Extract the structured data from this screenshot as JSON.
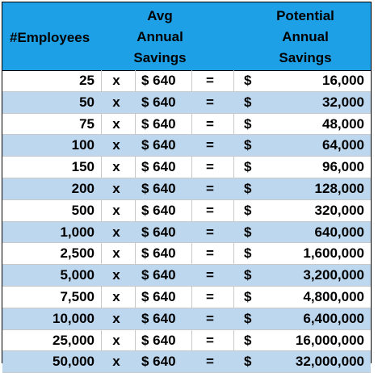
{
  "header": {
    "employees": "#Employees",
    "avg_line1": "Avg",
    "avg_line2": "Annual",
    "avg_line3": "Savings",
    "pot_line1": "Potential",
    "pot_line2": "Annual",
    "pot_line3": "Savings"
  },
  "colors": {
    "header_bg": "#1ea0e6",
    "alt_row_bg": "#bdd7ee"
  },
  "rows": [
    {
      "employees": "25",
      "x": "x",
      "avg": "$ 640",
      "eq": "=",
      "dollar": "$",
      "value": "16,000"
    },
    {
      "employees": "50",
      "x": "x",
      "avg": "$ 640",
      "eq": "=",
      "dollar": "$",
      "value": "32,000"
    },
    {
      "employees": "75",
      "x": "x",
      "avg": "$ 640",
      "eq": "=",
      "dollar": "$",
      "value": "48,000"
    },
    {
      "employees": "100",
      "x": "x",
      "avg": "$ 640",
      "eq": "=",
      "dollar": "$",
      "value": "64,000"
    },
    {
      "employees": "150",
      "x": "x",
      "avg": "$ 640",
      "eq": "=",
      "dollar": "$",
      "value": "96,000"
    },
    {
      "employees": "200",
      "x": "x",
      "avg": "$ 640",
      "eq": "=",
      "dollar": "$",
      "value": "128,000"
    },
    {
      "employees": "500",
      "x": "x",
      "avg": "$ 640",
      "eq": "=",
      "dollar": "$",
      "value": "320,000"
    },
    {
      "employees": "1,000",
      "x": "x",
      "avg": "$ 640",
      "eq": "=",
      "dollar": "$",
      "value": "640,000"
    },
    {
      "employees": "2,500",
      "x": "x",
      "avg": "$ 640",
      "eq": "=",
      "dollar": "$",
      "value": "1,600,000"
    },
    {
      "employees": "5,000",
      "x": "x",
      "avg": "$ 640",
      "eq": "=",
      "dollar": "$",
      "value": "3,200,000"
    },
    {
      "employees": "7,500",
      "x": "x",
      "avg": "$ 640",
      "eq": "=",
      "dollar": "$",
      "value": "4,800,000"
    },
    {
      "employees": "10,000",
      "x": "x",
      "avg": "$ 640",
      "eq": "=",
      "dollar": "$",
      "value": "6,400,000"
    },
    {
      "employees": "25,000",
      "x": "x",
      "avg": "$ 640",
      "eq": "=",
      "dollar": "$",
      "value": "16,000,000"
    },
    {
      "employees": "50,000",
      "x": "x",
      "avg": "$ 640",
      "eq": "=",
      "dollar": "$",
      "value": "32,000,000"
    }
  ]
}
